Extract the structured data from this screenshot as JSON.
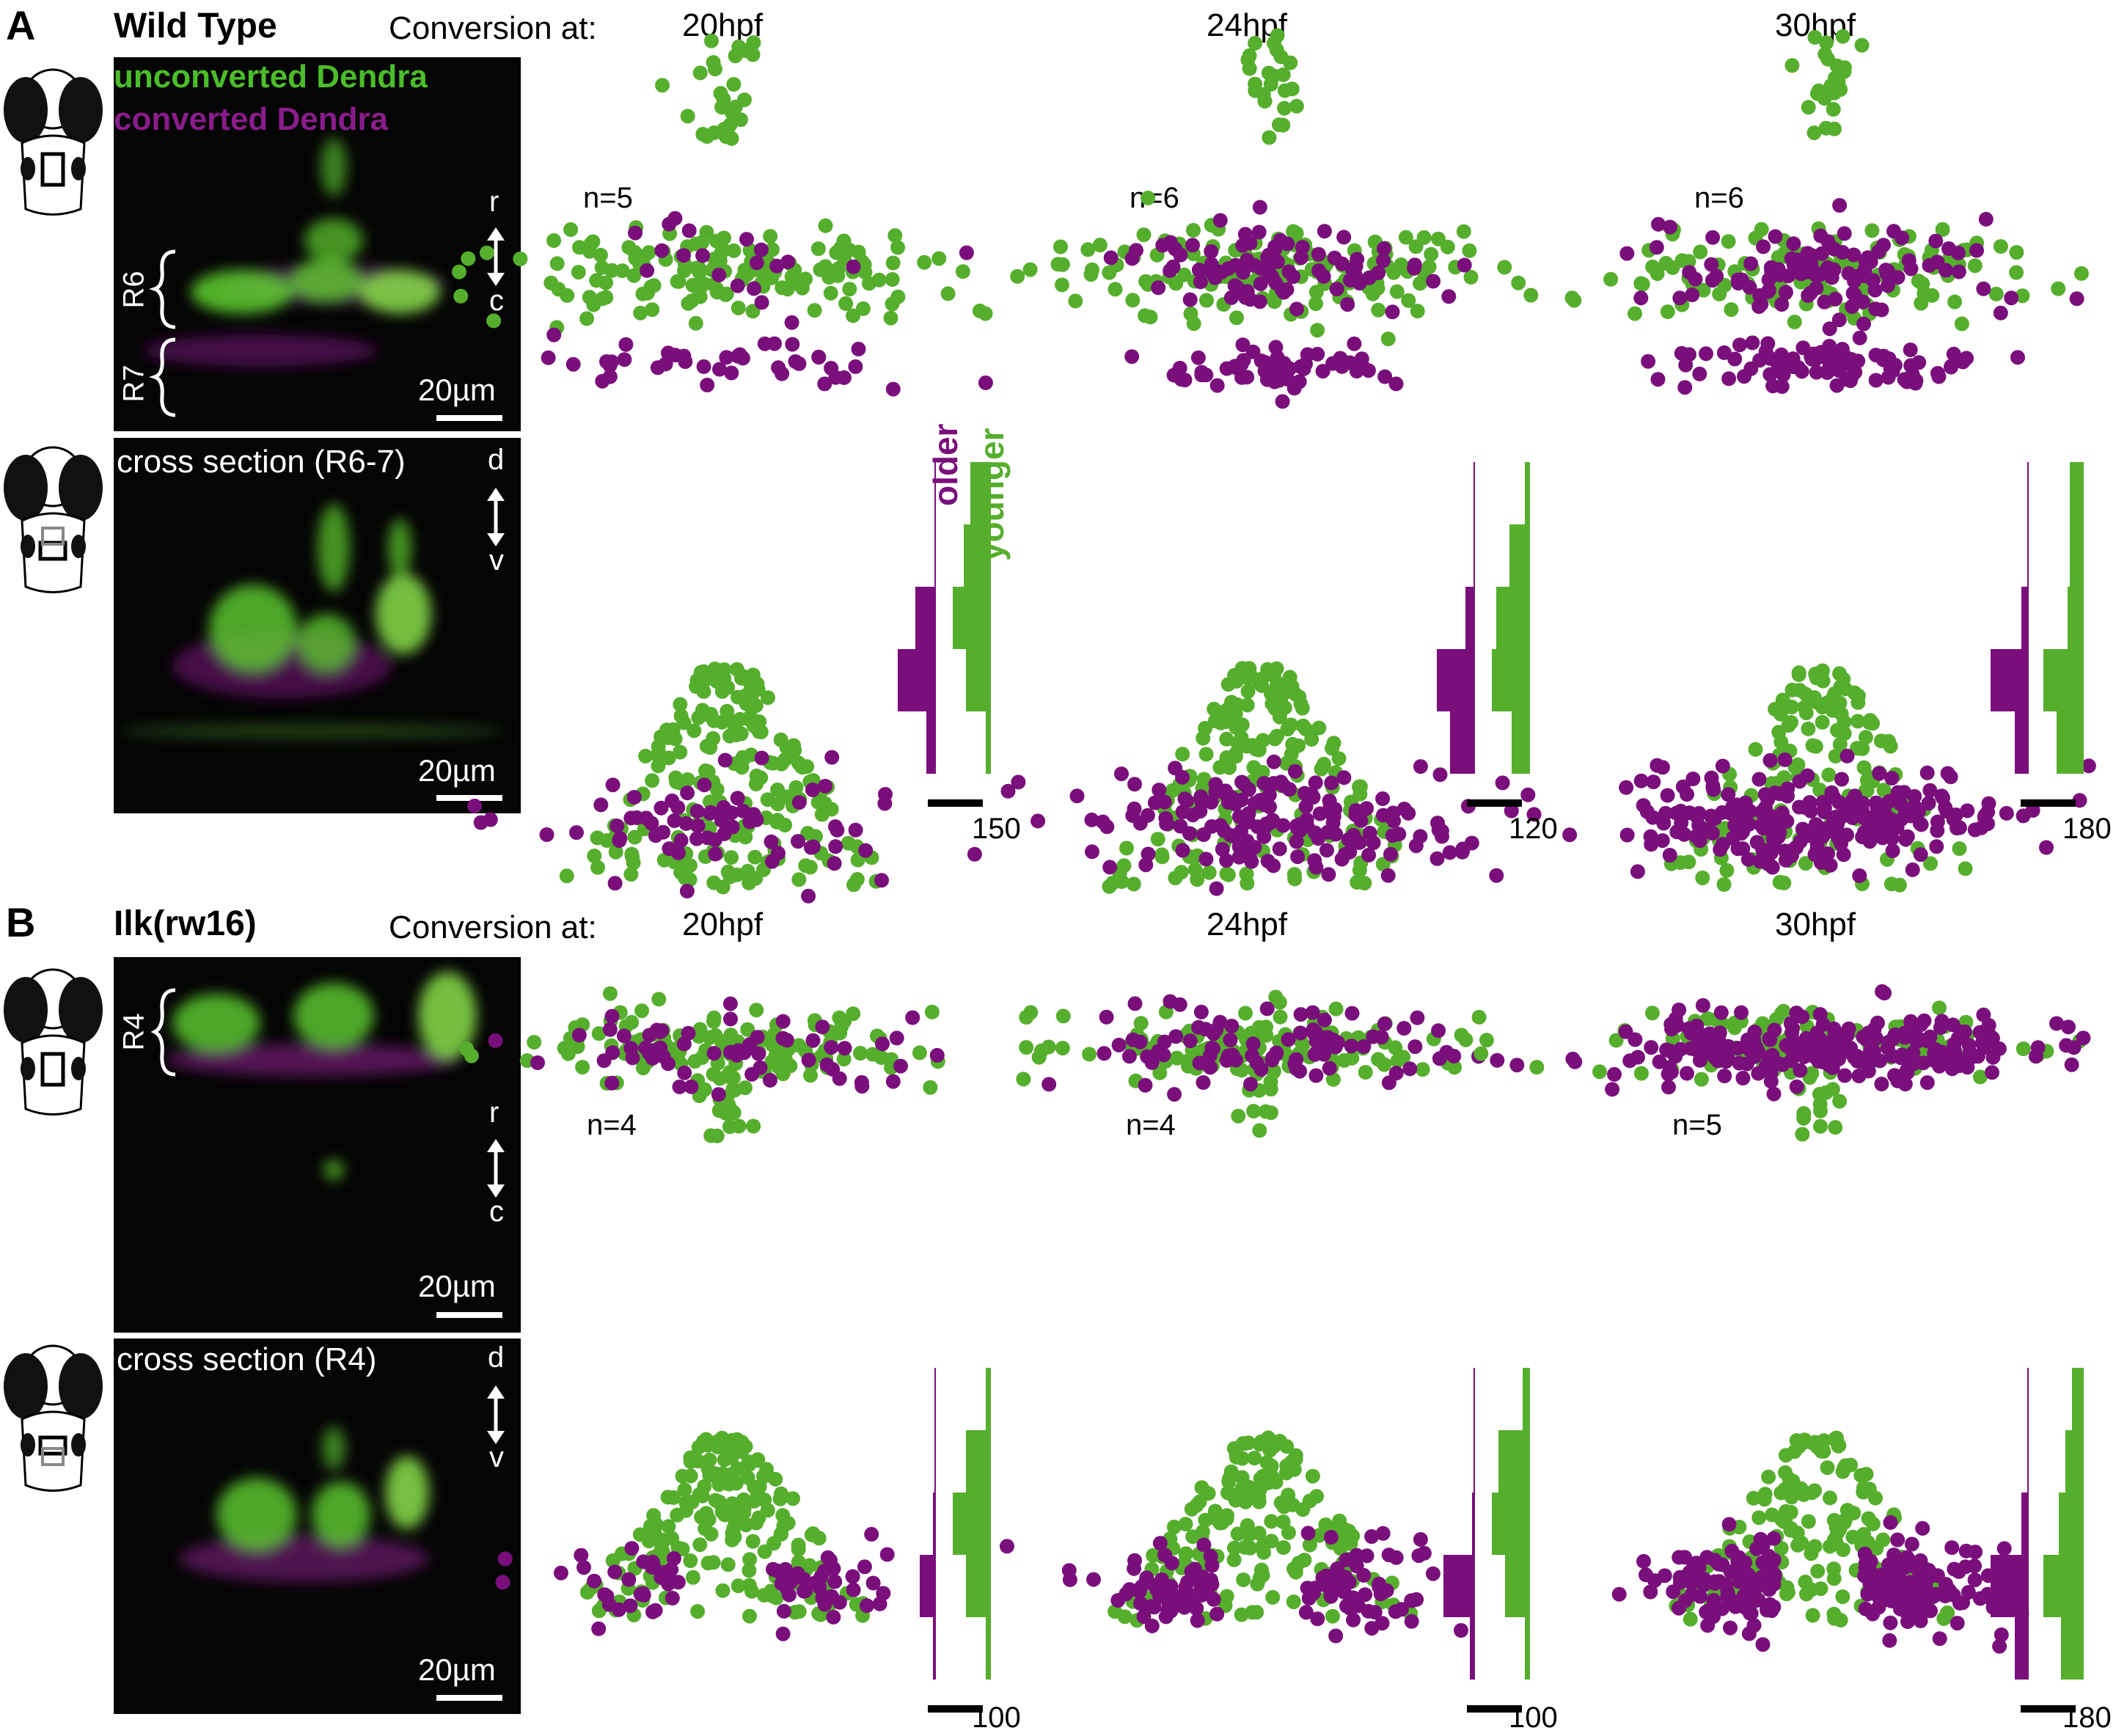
{
  "colors": {
    "younger": "#56ae2d",
    "older": "#7a0f7c",
    "unconverted": "#4bbd2a",
    "converted": "#8a1c8c"
  },
  "panels": [
    {
      "letter": "A",
      "genotype": "Wild Type",
      "conversion_label": "Conversion at:",
      "timepoints": [
        "20hpf",
        "24hpf",
        "30hpf"
      ],
      "n": [
        "n=5",
        "n=6",
        "n=6"
      ],
      "dorsal_micro": {
        "legend_green": "unconverted Dendra",
        "legend_magenta": "converted Dendra",
        "regions": [
          "R6",
          "R7"
        ],
        "axis_top": "r",
        "axis_bottom": "c",
        "scale": "20µm"
      },
      "cross_micro": {
        "title": "cross section (R6-7)",
        "axis_top": "d",
        "axis_bottom": "v",
        "scale": "20µm"
      },
      "histogram_scales": [
        "150",
        "120",
        "180"
      ]
    },
    {
      "letter": "B",
      "genotype": "Ilk(rw16)",
      "conversion_label": "Conversion at:",
      "timepoints": [
        "20hpf",
        "24hpf",
        "30hpf"
      ],
      "n": [
        "n=4",
        "n=4",
        "n=5"
      ],
      "dorsal_micro": {
        "regions": [
          "R4"
        ],
        "axis_top": "r",
        "axis_bottom": "c",
        "scale": "20µm"
      },
      "cross_micro": {
        "title": "cross section (R4)",
        "axis_top": "d",
        "axis_bottom": "v",
        "scale": "20µm"
      },
      "histogram_scales": [
        "100",
        "100",
        "180"
      ]
    }
  ],
  "hist_labels": {
    "older": "older",
    "younger": "younger"
  },
  "chart_data": [
    {
      "type": "scatter",
      "panel": "A",
      "view": "dorsal",
      "timepoint": "20hpf",
      "pattern": "wt-dorsal",
      "younger_count": 180,
      "older_count": 60
    },
    {
      "type": "scatter",
      "panel": "A",
      "view": "dorsal",
      "timepoint": "24hpf",
      "pattern": "wt-dorsal",
      "younger_count": 170,
      "older_count": 150
    },
    {
      "type": "scatter",
      "panel": "A",
      "view": "dorsal",
      "timepoint": "30hpf",
      "pattern": "wt-dorsal",
      "younger_count": 150,
      "older_count": 200
    },
    {
      "type": "scatter",
      "panel": "A",
      "view": "cross",
      "timepoint": "20hpf",
      "pattern": "wt-cross",
      "younger_count": 210,
      "older_count": 70
    },
    {
      "type": "scatter",
      "panel": "A",
      "view": "cross",
      "timepoint": "24hpf",
      "pattern": "wt-cross",
      "younger_count": 180,
      "older_count": 170
    },
    {
      "type": "scatter",
      "panel": "A",
      "view": "cross",
      "timepoint": "30hpf",
      "pattern": "wt-cross",
      "younger_count": 140,
      "older_count": 240
    },
    {
      "type": "scatter",
      "panel": "B",
      "view": "dorsal",
      "timepoint": "20hpf",
      "pattern": "ilk-dorsal",
      "younger_count": 150,
      "older_count": 60
    },
    {
      "type": "scatter",
      "panel": "B",
      "view": "dorsal",
      "timepoint": "24hpf",
      "pattern": "ilk-dorsal",
      "younger_count": 130,
      "older_count": 90
    },
    {
      "type": "scatter",
      "panel": "B",
      "view": "dorsal",
      "timepoint": "30hpf",
      "pattern": "ilk-dorsal",
      "younger_count": 120,
      "older_count": 230
    },
    {
      "type": "scatter",
      "panel": "B",
      "view": "cross",
      "timepoint": "20hpf",
      "pattern": "ilk-cross",
      "younger_count": 180,
      "older_count": 70
    },
    {
      "type": "scatter",
      "panel": "B",
      "view": "cross",
      "timepoint": "24hpf",
      "pattern": "ilk-cross",
      "younger_count": 170,
      "older_count": 120
    },
    {
      "type": "scatter",
      "panel": "B",
      "view": "cross",
      "timepoint": "30hpf",
      "pattern": "ilk-cross",
      "younger_count": 150,
      "older_count": 220
    }
  ],
  "histograms": [
    {
      "panel": "A",
      "timepoint": "20hpf",
      "bins": 5,
      "older": [
        0,
        0,
        0.45,
        0.85,
        0.2
      ],
      "younger": [
        0.45,
        0.6,
        0.85,
        0.55,
        0.1
      ]
    },
    {
      "panel": "A",
      "timepoint": "24hpf",
      "bins": 5,
      "older": [
        0,
        0,
        0.2,
        0.85,
        0.55
      ],
      "younger": [
        0.1,
        0.45,
        0.75,
        0.85,
        0.4
      ]
    },
    {
      "panel": "A",
      "timepoint": "30hpf",
      "bins": 5,
      "older": [
        0,
        0,
        0.15,
        0.85,
        0.3
      ],
      "younger": [
        0.3,
        0.3,
        0.35,
        0.9,
        0.6
      ]
    },
    {
      "panel": "B",
      "timepoint": "20hpf",
      "bins": 5,
      "older": [
        0,
        0,
        0.05,
        0.35,
        0.05
      ],
      "younger": [
        0.1,
        0.55,
        0.85,
        0.55,
        0.1
      ]
    },
    {
      "panel": "B",
      "timepoint": "24hpf",
      "bins": 5,
      "older": [
        0,
        0,
        0.05,
        0.7,
        0.1
      ],
      "younger": [
        0.15,
        0.7,
        0.85,
        0.55,
        0.1
      ]
    },
    {
      "panel": "B",
      "timepoint": "30hpf",
      "bins": 5,
      "older": [
        0,
        0,
        0.15,
        0.85,
        0.3
      ],
      "younger": [
        0.25,
        0.4,
        0.55,
        0.9,
        0.5
      ]
    }
  ]
}
